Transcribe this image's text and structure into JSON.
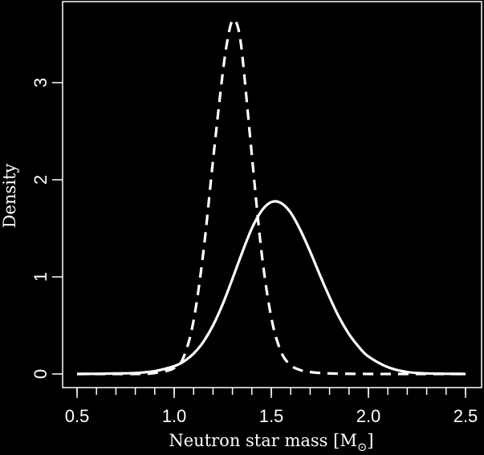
{
  "chart_data": {
    "type": "line",
    "xlabel": "Neutron star mass [M",
    "xlabel_symbol": "⊙",
    "xlabel_close": "]",
    "ylabel": "Density",
    "xlim": [
      0.5,
      2.5
    ],
    "ylim": [
      0,
      3.7
    ],
    "xticks": [
      "0.5",
      "1.0",
      "1.5",
      "2.0",
      "2.5"
    ],
    "yticks": [
      "0",
      "1",
      "2",
      "3"
    ],
    "grid": false,
    "colors": {
      "background": "#000000",
      "foreground": "#ffffff"
    },
    "series": [
      {
        "style": "solid",
        "x": [
          0.5,
          0.6,
          0.7,
          0.8,
          0.9,
          1.0,
          1.05,
          1.1,
          1.15,
          1.2,
          1.25,
          1.3,
          1.35,
          1.4,
          1.45,
          1.5,
          1.55,
          1.6,
          1.65,
          1.7,
          1.75,
          1.8,
          1.85,
          1.9,
          1.95,
          2.0,
          2.1,
          2.2,
          2.3,
          2.4,
          2.5
        ],
        "y": [
          0.0,
          0.002,
          0.005,
          0.01,
          0.03,
          0.08,
          0.13,
          0.21,
          0.33,
          0.5,
          0.72,
          0.98,
          1.25,
          1.5,
          1.68,
          1.77,
          1.76,
          1.66,
          1.48,
          1.26,
          1.02,
          0.79,
          0.58,
          0.41,
          0.28,
          0.18,
          0.07,
          0.02,
          0.006,
          0.002,
          0.0
        ]
      },
      {
        "style": "dashed",
        "x": [
          0.5,
          0.8,
          0.9,
          1.0,
          1.05,
          1.1,
          1.15,
          1.2,
          1.25,
          1.28,
          1.3,
          1.32,
          1.34,
          1.36,
          1.4,
          1.45,
          1.5,
          1.55,
          1.6,
          1.65,
          1.7,
          1.8,
          2.0,
          2.2,
          2.5
        ],
        "y": [
          0.0,
          0.0,
          0.01,
          0.06,
          0.18,
          0.55,
          1.25,
          2.2,
          3.1,
          3.5,
          3.64,
          3.62,
          3.45,
          3.1,
          2.25,
          1.25,
          0.58,
          0.23,
          0.09,
          0.04,
          0.02,
          0.005,
          0.0,
          0.0,
          0.0
        ]
      }
    ]
  }
}
